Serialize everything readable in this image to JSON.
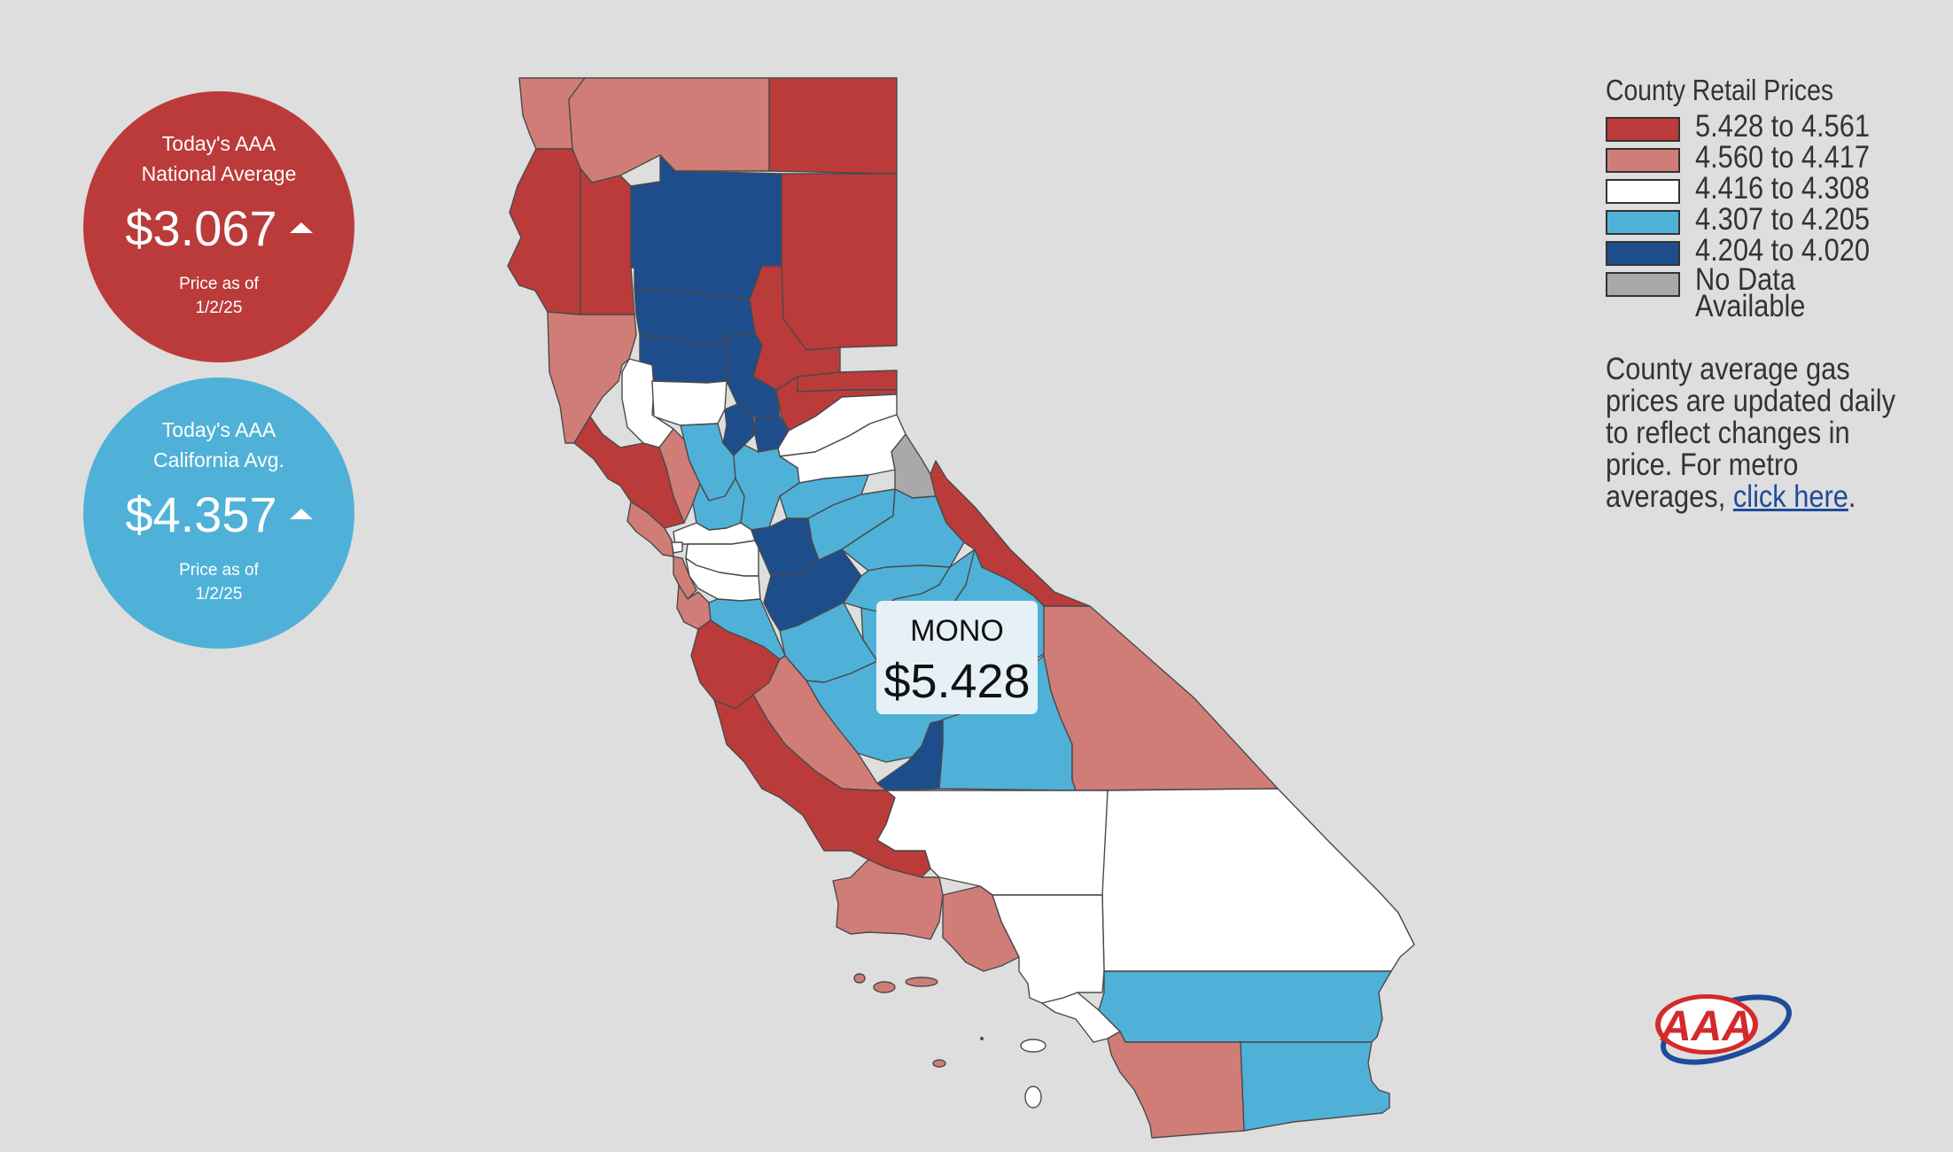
{
  "national": {
    "title_line1": "Today's AAA",
    "title_line2": "National Average",
    "price": "$3.067",
    "asof_line1": "Price as of",
    "asof_line2": "1/2/25",
    "trend_icon": "up-triangle-icon",
    "color": "#bb3b3b"
  },
  "state": {
    "title_line1": "Today's AAA",
    "title_line2": "California Avg.",
    "price": "$4.357",
    "asof_line1": "Price as of",
    "asof_line2": "1/2/25",
    "trend_icon": "up-triangle-icon",
    "color": "#4fb1d7"
  },
  "tooltip": {
    "county": "MONO",
    "price": "$5.428"
  },
  "legend": {
    "title": "County Retail Prices",
    "ranges": [
      {
        "label": "5.428 to 4.561",
        "color": "#bb3b3b"
      },
      {
        "label": "4.560 to 4.417",
        "color": "#d07d78"
      },
      {
        "label": "4.416 to 4.308",
        "color": "#ffffff"
      },
      {
        "label": "4.307 to 4.205",
        "color": "#4fb1d7"
      },
      {
        "label": "4.204 to 4.020",
        "color": "#1e4d8c"
      }
    ],
    "no_data_line1": "No Data",
    "no_data_line2": "Available",
    "no_data_color": "#a9a9a9",
    "note_text": "County average gas prices are updated daily to reflect changes in price. For metro averages, ",
    "note_link": "click here",
    "note_end": "."
  },
  "logo": {
    "text": "AAA",
    "icon": "aaa-logo-icon"
  },
  "colors": {
    "background": "#dedede",
    "tier1": "#bb3b3b",
    "tier2": "#d07d78",
    "tier3": "#ffffff",
    "tier4": "#4fb1d7",
    "tier5": "#1e4d8c",
    "nodata": "#a9a9a9"
  }
}
